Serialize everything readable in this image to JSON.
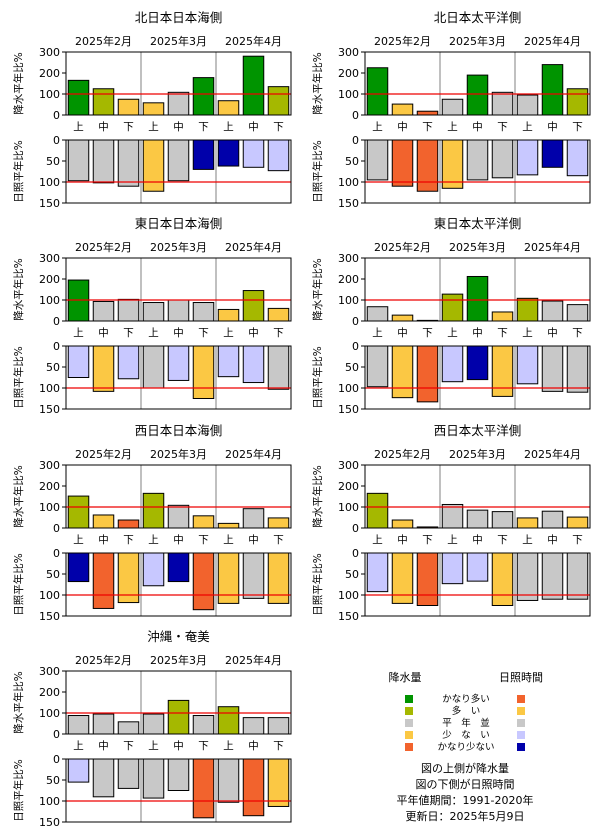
{
  "colors": {
    "precip": {
      "very_high": "#009400",
      "high": "#a5b800",
      "normal": "#c8c8c8",
      "low": "#fbc844",
      "very_low": "#f2632d"
    },
    "sun": {
      "very_high": "#f2632d",
      "high": "#fbc844",
      "normal": "#c8c8c8",
      "low": "#c8c8ff",
      "very_low": "#0000aa"
    },
    "reference_line": "#ee0000",
    "month_divider": "#808080"
  },
  "shared_axes": {
    "precip_ylabel": "降水平年比%",
    "sun_ylabel": "日照平年比%",
    "precip_ticks": [
      "0",
      "100",
      "200",
      "300"
    ],
    "sun_ticks": [
      "0",
      "50",
      "100",
      "150"
    ],
    "months": [
      "2025年2月",
      "2025年3月",
      "2025年4月"
    ],
    "dekads": [
      "上",
      "中",
      "下",
      "上",
      "中",
      "下",
      "上",
      "中",
      "下"
    ]
  },
  "chart_data": [
    {
      "type": "bar",
      "title": "北日本日本海側",
      "categories": [
        "2月上",
        "2月中",
        "2月下",
        "3月上",
        "3月中",
        "3月下",
        "4月上",
        "4月中",
        "4月下"
      ],
      "precip_ylim": [
        0,
        300
      ],
      "sun_ylim": [
        0,
        150
      ],
      "reference": 100,
      "series": [
        {
          "name": "降水量",
          "values": [
            165,
            125,
            75,
            58,
            108,
            178,
            68,
            280,
            135
          ],
          "classes": [
            "very_high",
            "high",
            "low",
            "low",
            "normal",
            "very_high",
            "low",
            "very_high",
            "high"
          ]
        },
        {
          "name": "日照時間",
          "values": [
            97,
            102,
            110,
            122,
            97,
            70,
            62,
            65,
            73
          ],
          "classes": [
            "normal",
            "normal",
            "normal",
            "high",
            "normal",
            "very_low",
            "very_low",
            "low",
            "low"
          ]
        }
      ]
    },
    {
      "type": "bar",
      "title": "北日本太平洋側",
      "categories": [
        "2月上",
        "2月中",
        "2月下",
        "3月上",
        "3月中",
        "3月下",
        "4月上",
        "4月中",
        "4月下"
      ],
      "precip_ylim": [
        0,
        300
      ],
      "sun_ylim": [
        0,
        150
      ],
      "reference": 100,
      "series": [
        {
          "name": "降水量",
          "values": [
            225,
            52,
            18,
            75,
            190,
            108,
            95,
            240,
            125
          ],
          "classes": [
            "very_high",
            "low",
            "very_low",
            "normal",
            "very_high",
            "normal",
            "normal",
            "very_high",
            "high"
          ]
        },
        {
          "name": "日照時間",
          "values": [
            95,
            110,
            122,
            115,
            95,
            90,
            83,
            65,
            85
          ],
          "classes": [
            "normal",
            "very_high",
            "very_high",
            "high",
            "normal",
            "normal",
            "low",
            "very_low",
            "low"
          ]
        }
      ]
    },
    {
      "type": "bar",
      "title": "東日本日本海側",
      "categories": [
        "2月上",
        "2月中",
        "2月下",
        "3月上",
        "3月中",
        "3月下",
        "4月上",
        "4月中",
        "4月下"
      ],
      "precip_ylim": [
        0,
        300
      ],
      "sun_ylim": [
        0,
        150
      ],
      "reference": 100,
      "series": [
        {
          "name": "降水量",
          "values": [
            195,
            93,
            103,
            88,
            100,
            88,
            55,
            145,
            60
          ],
          "classes": [
            "very_high",
            "normal",
            "normal",
            "normal",
            "normal",
            "normal",
            "low",
            "high",
            "low"
          ]
        },
        {
          "name": "日照時間",
          "values": [
            75,
            108,
            78,
            100,
            82,
            125,
            73,
            87,
            103
          ],
          "classes": [
            "low",
            "high",
            "low",
            "normal",
            "low",
            "high",
            "low",
            "low",
            "normal"
          ]
        }
      ]
    },
    {
      "type": "bar",
      "title": "東日本太平洋側",
      "categories": [
        "2月上",
        "2月中",
        "2月下",
        "3月上",
        "3月中",
        "3月下",
        "4月上",
        "4月中",
        "4月下"
      ],
      "precip_ylim": [
        0,
        300
      ],
      "sun_ylim": [
        0,
        150
      ],
      "reference": 100,
      "series": [
        {
          "name": "降水量",
          "values": [
            68,
            28,
            3,
            128,
            212,
            43,
            108,
            95,
            78
          ],
          "classes": [
            "normal",
            "low",
            "very_low",
            "high",
            "very_high",
            "low",
            "high",
            "normal",
            "normal"
          ]
        },
        {
          "name": "日照時間",
          "values": [
            97,
            123,
            133,
            85,
            80,
            120,
            90,
            108,
            110
          ],
          "classes": [
            "normal",
            "high",
            "very_high",
            "low",
            "very_low",
            "high",
            "low",
            "normal",
            "normal"
          ]
        }
      ]
    },
    {
      "type": "bar",
      "title": "西日本日本海側",
      "categories": [
        "2月上",
        "2月中",
        "2月下",
        "3月上",
        "3月中",
        "3月下",
        "4月上",
        "4月中",
        "4月下"
      ],
      "precip_ylim": [
        0,
        300
      ],
      "sun_ylim": [
        0,
        150
      ],
      "reference": 100,
      "series": [
        {
          "name": "降水量",
          "values": [
            152,
            62,
            38,
            165,
            108,
            58,
            22,
            92,
            48
          ],
          "classes": [
            "high",
            "low",
            "very_low",
            "high",
            "normal",
            "low",
            "low",
            "normal",
            "low"
          ]
        },
        {
          "name": "日照時間",
          "values": [
            68,
            132,
            118,
            78,
            68,
            135,
            120,
            108,
            120
          ],
          "classes": [
            "very_low",
            "very_high",
            "high",
            "low",
            "very_low",
            "very_high",
            "high",
            "normal",
            "high"
          ]
        }
      ]
    },
    {
      "type": "bar",
      "title": "西日本太平洋側",
      "categories": [
        "2月上",
        "2月中",
        "2月下",
        "3月上",
        "3月中",
        "3月下",
        "4月上",
        "4月中",
        "4月下"
      ],
      "precip_ylim": [
        0,
        300
      ],
      "sun_ylim": [
        0,
        150
      ],
      "reference": 100,
      "series": [
        {
          "name": "降水量",
          "values": [
            165,
            38,
            5,
            112,
            85,
            78,
            48,
            80,
            52
          ],
          "classes": [
            "high",
            "low",
            "very_low",
            "normal",
            "normal",
            "normal",
            "low",
            "normal",
            "low"
          ]
        },
        {
          "name": "日照時間",
          "values": [
            92,
            120,
            125,
            73,
            67,
            125,
            113,
            110,
            110
          ],
          "classes": [
            "low",
            "high",
            "very_high",
            "low",
            "low",
            "high",
            "normal",
            "normal",
            "normal"
          ]
        }
      ]
    },
    {
      "type": "bar",
      "title": "沖縄・奄美",
      "categories": [
        "2月上",
        "2月中",
        "2月下",
        "3月上",
        "3月中",
        "3月下",
        "4月上",
        "4月中",
        "4月下"
      ],
      "precip_ylim": [
        0,
        300
      ],
      "sun_ylim": [
        0,
        150
      ],
      "reference": 100,
      "series": [
        {
          "name": "降水量",
          "values": [
            88,
            95,
            58,
            95,
            160,
            88,
            130,
            78,
            78
          ],
          "classes": [
            "normal",
            "normal",
            "normal",
            "normal",
            "high",
            "normal",
            "high",
            "normal",
            "normal"
          ]
        },
        {
          "name": "日照時間",
          "values": [
            55,
            90,
            70,
            93,
            75,
            140,
            103,
            135,
            113
          ],
          "classes": [
            "low",
            "normal",
            "normal",
            "normal",
            "normal",
            "very_high",
            "normal",
            "very_high",
            "high"
          ]
        }
      ]
    }
  ],
  "legend": {
    "precip_header": "降水量",
    "sun_header": "日照時間",
    "rows": [
      {
        "label": "かなり多い",
        "key": "very_high"
      },
      {
        "label": "多　い",
        "key": "high"
      },
      {
        "label": "平　年　並",
        "key": "normal"
      },
      {
        "label": "少　な　い",
        "key": "low"
      },
      {
        "label": "かなり少ない",
        "key": "very_low"
      }
    ]
  },
  "notes": [
    "図の上側が降水量",
    "図の下側が日照時間",
    "平年値期間：1991-2020年",
    "更新日：2025年5月9日"
  ]
}
